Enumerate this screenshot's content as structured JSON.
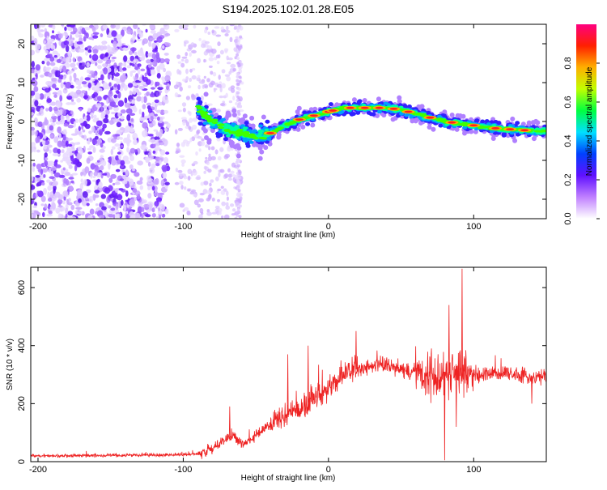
{
  "title": "S194.2025.102.01.28.E05",
  "chart_data": [
    {
      "type": "heatmap",
      "xlabel": "Height of straight line (km)",
      "ylabel": "Frequency (Hz)",
      "xlim": [
        -205,
        150
      ],
      "ylim": [
        -25,
        25
      ],
      "xticks": [
        -200,
        -100,
        0,
        100
      ],
      "yticks": [
        -20,
        -10,
        0,
        10,
        20
      ],
      "grid": false,
      "colorbar": {
        "label": "Normalized spectral amplitude",
        "range": [
          0,
          1
        ],
        "ticks": [
          0.0,
          0.2,
          0.4,
          0.6,
          0.8
        ],
        "colors": [
          "#ffffff",
          "#c080ff",
          "#6010ff",
          "#0040ff",
          "#00e0ff",
          "#00ff40",
          "#c0ff00",
          "#ffb000",
          "#ff2000",
          "#ff0080"
        ]
      },
      "ridge": {
        "x": [
          -90,
          -80,
          -70,
          -60,
          -50,
          -40,
          -30,
          -20,
          -10,
          0,
          10,
          20,
          30,
          40,
          50,
          60,
          70,
          80,
          90,
          100,
          110,
          120,
          130,
          140,
          150
        ],
        "y": [
          3.5,
          0,
          -2,
          -3,
          -4,
          -3,
          -1,
          0.5,
          1.5,
          2.5,
          3.5,
          3.5,
          3.5,
          3.5,
          3,
          2,
          1,
          0,
          -0.5,
          -1,
          -1.5,
          -2,
          -2,
          -2.5,
          -2.5
        ]
      }
    },
    {
      "type": "line",
      "xlabel": "Height of straight line (km)",
      "ylabel": "SNR (10 * v/v)",
      "xlim": [
        -205,
        150
      ],
      "ylim": [
        0,
        670
      ],
      "xticks": [
        -200,
        -100,
        0,
        100
      ],
      "yticks": [
        0,
        200,
        400,
        600
      ],
      "grid": false,
      "series": [
        {
          "color": "#ee2222",
          "x": [
            -205,
            -180,
            -150,
            -120,
            -95,
            -85,
            -78,
            -72,
            -65,
            -60,
            -55,
            -50,
            -45,
            -40,
            -35,
            -30,
            -25,
            -20,
            -15,
            -10,
            -5,
            0,
            5,
            10,
            15,
            20,
            25,
            30,
            35,
            40,
            45,
            50,
            55,
            60,
            65,
            70,
            75,
            80,
            85,
            90,
            95,
            100,
            110,
            120,
            130,
            140,
            150
          ],
          "values": [
            20,
            20,
            22,
            22,
            25,
            30,
            50,
            75,
            90,
            60,
            70,
            90,
            110,
            130,
            150,
            160,
            170,
            180,
            200,
            220,
            235,
            250,
            275,
            300,
            310,
            320,
            325,
            330,
            335,
            330,
            325,
            320,
            310,
            315,
            300,
            295,
            300,
            310,
            300,
            310,
            305,
            300,
            300,
            305,
            300,
            290,
            295
          ]
        }
      ]
    }
  ]
}
